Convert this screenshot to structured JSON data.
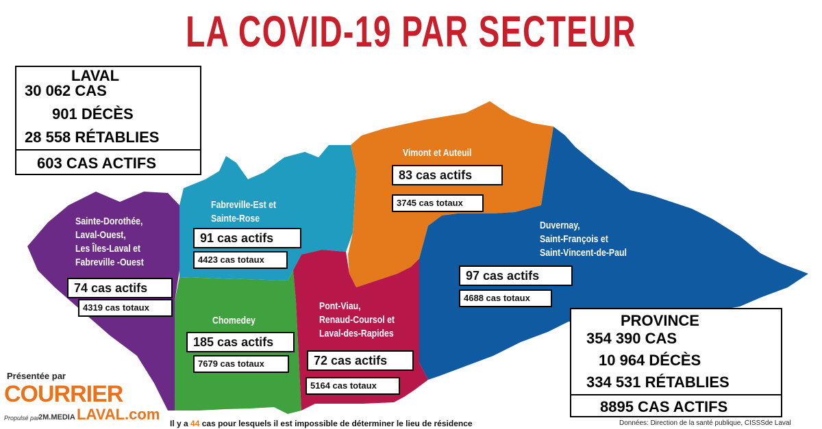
{
  "title": "LA COVID-19 PAR SECTEUR",
  "laval": {
    "heading": "LAVAL",
    "cas": "30 062 CAS",
    "deces": "901 DÉCÈS",
    "retablies": "28 558 RÉTABLIES",
    "actifs": "603 CAS ACTIFS"
  },
  "province": {
    "heading": "PROVINCE",
    "cas": "354 390 CAS",
    "deces": "10 964 DÉCÈS",
    "retablies": "334 531 RÉTABLIES",
    "actifs": "8895 CAS ACTIFS"
  },
  "sectors": [
    {
      "id": "sainte-dorothee",
      "name_lines": [
        "Sainte-Dorothée,",
        "Laval-Ouest,",
        "Les Îles-Laval et",
        "Fabreville -Ouest"
      ],
      "actifs": "74 cas actifs",
      "totaux": "4319 cas totaux",
      "color": "#6b2a86"
    },
    {
      "id": "fabreville-est",
      "name_lines": [
        "Fabreville-Est et",
        "Sainte-Rose"
      ],
      "actifs": "91 cas actifs",
      "totaux": "4423 cas totaux",
      "color": "#1f9cc0"
    },
    {
      "id": "vimont",
      "name_lines": [
        "Vimont et Auteuil"
      ],
      "actifs": "83 cas actifs",
      "totaux": "3745 cas totaux",
      "color": "#e57a1c"
    },
    {
      "id": "duvernay",
      "name_lines": [
        "Duvernay,",
        "Saint-François et",
        "Saint-Vincent-de-Paul"
      ],
      "actifs": "97 cas actifs",
      "totaux": "4688 cas totaux",
      "color": "#0f5aa0"
    },
    {
      "id": "chomedey",
      "name_lines": [
        "Chomedey"
      ],
      "actifs": "185 cas actifs",
      "totaux": "7679 cas totaux",
      "color": "#3fa23e"
    },
    {
      "id": "pont-viau",
      "name_lines": [
        "Pont-Viau,",
        "Renaud-Coursol et",
        "Laval-des-Rapides"
      ],
      "actifs": "72 cas actifs",
      "totaux": "5164 cas totaux",
      "color": "#b8174a"
    }
  ],
  "footnote": {
    "before": "Il y a ",
    "count": "44",
    "after": " cas pour lesquels il est impossible de déterminer le lieu de résidence",
    "count_color": "#e57a1c"
  },
  "source": "Données: Direction de la santé publique, CISSSde Laval",
  "brand": {
    "presented_by": "Présentée par",
    "courrier": "COURRIER",
    "laval_com": "LAVAL.com",
    "propulse": "Propulsé par",
    "media": "2M.MEDIA",
    "orange": "#e8731c",
    "dark": "#333333"
  },
  "title_color": "#c8202a"
}
